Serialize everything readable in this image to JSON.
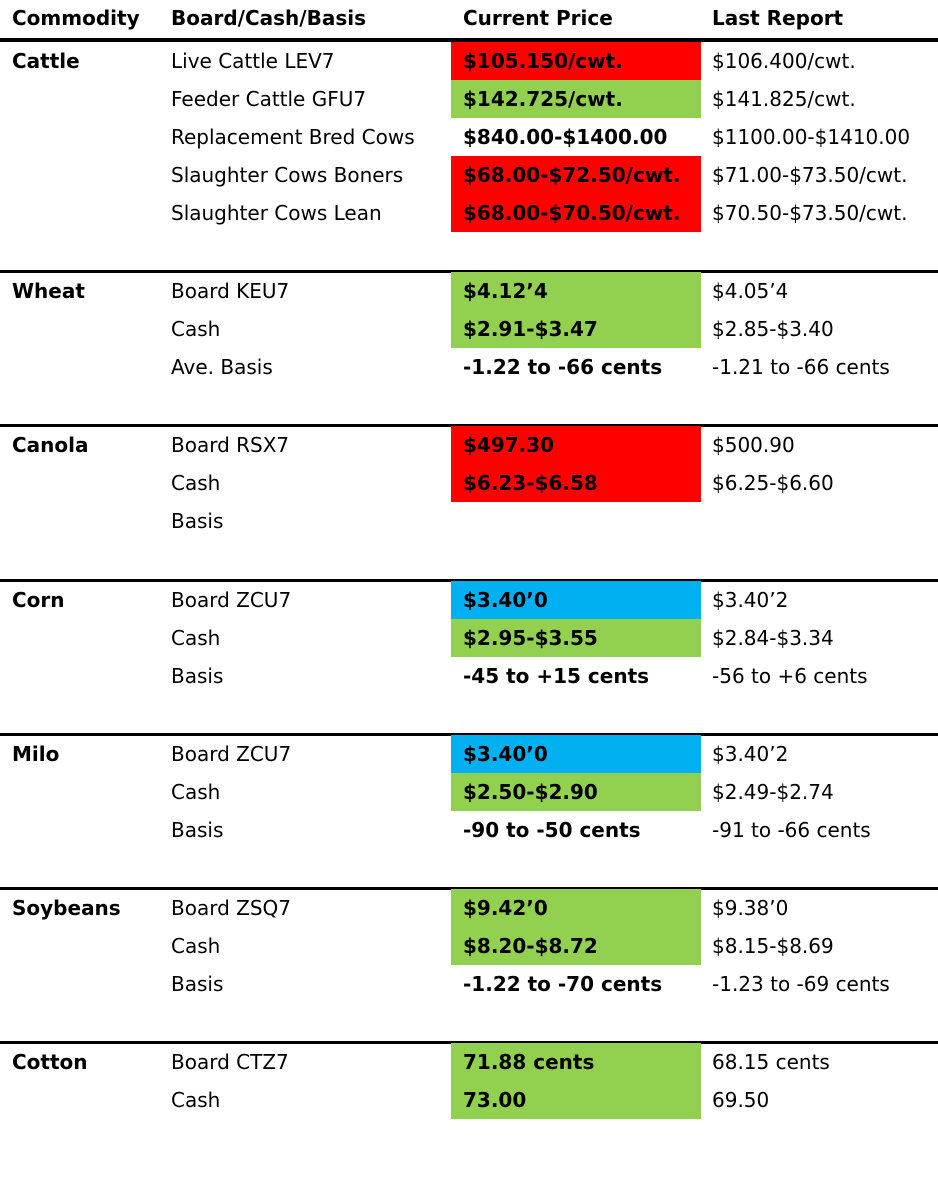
{
  "headers": {
    "commodity": "Commodity",
    "board": "Board/Cash/Basis",
    "current": "Current Price",
    "last": "Last Report"
  },
  "colors": {
    "up": "#92d050",
    "down": "#ff0000",
    "unchanged": "#00b0f0"
  },
  "sections": [
    {
      "commodity": "Cattle",
      "rows": [
        {
          "board": "Live Cattle LEV7",
          "current": "$105.150/cwt.",
          "last": "$106.400/cwt.",
          "trend": "down"
        },
        {
          "board": "Feeder Cattle GFU7",
          "current": "$142.725/cwt.",
          "last": "$141.825/cwt.",
          "trend": "up"
        },
        {
          "board": "Replacement Bred Cows",
          "current": "$840.00-$1400.00",
          "last": "$1100.00-$1410.00",
          "trend": "none"
        },
        {
          "board": "Slaughter Cows Boners",
          "current": "$68.00-$72.50/cwt.",
          "last": "$71.00-$73.50/cwt.",
          "trend": "down"
        },
        {
          "board": "Slaughter Cows Lean",
          "current": "$68.00-$70.50/cwt.",
          "last": "$70.50-$73.50/cwt.",
          "trend": "down"
        }
      ]
    },
    {
      "commodity": "Wheat",
      "rows": [
        {
          "board": "Board KEU7",
          "current": "$4.12’4",
          "last": "$4.05’4",
          "trend": "up"
        },
        {
          "board": "Cash",
          "current": "$2.91-$3.47",
          "last": "$2.85-$3.40",
          "trend": "up"
        },
        {
          "board": "Ave. Basis",
          "current": "-1.22 to -66 cents",
          "last": "-1.21 to -66 cents",
          "trend": "none"
        }
      ]
    },
    {
      "commodity": "Canola",
      "rows": [
        {
          "board": "Board RSX7",
          "current": "$497.30",
          "last": "$500.90",
          "trend": "down"
        },
        {
          "board": "Cash",
          "current": "$6.23-$6.58",
          "last": "$6.25-$6.60",
          "trend": "down"
        },
        {
          "board": "Basis",
          "current": "",
          "last": "",
          "trend": "none"
        }
      ]
    },
    {
      "commodity": "Corn",
      "rows": [
        {
          "board": "Board ZCU7",
          "current": "$3.40’0",
          "last": "$3.40’2",
          "trend": "unchanged"
        },
        {
          "board": "Cash",
          "current": "$2.95-$3.55",
          "last": "$2.84-$3.34",
          "trend": "up"
        },
        {
          "board": "Basis",
          "current": "-45 to +15 cents",
          "last": "-56 to +6 cents",
          "trend": "none"
        }
      ]
    },
    {
      "commodity": "Milo",
      "rows": [
        {
          "board": "Board ZCU7",
          "current": "$3.40’0",
          "last": "$3.40’2",
          "trend": "unchanged"
        },
        {
          "board": "Cash",
          "current": "$2.50-$2.90",
          "last": "$2.49-$2.74",
          "trend": "up"
        },
        {
          "board": "Basis",
          "current": "-90 to -50 cents",
          "last": "-91 to -66 cents",
          "trend": "none"
        }
      ]
    },
    {
      "commodity": "Soybeans",
      "rows": [
        {
          "board": "Board ZSQ7",
          "current": "$9.42’0",
          "last": "$9.38’0",
          "trend": "up"
        },
        {
          "board": "Cash",
          "current": "$8.20-$8.72",
          "last": "$8.15-$8.69",
          "trend": "up"
        },
        {
          "board": "Basis",
          "current": "-1.22 to -70 cents",
          "last": "-1.23 to -69 cents",
          "trend": "none"
        }
      ]
    },
    {
      "commodity": "Cotton",
      "rows": [
        {
          "board": "Board CTZ7",
          "current": "71.88 cents",
          "last": "68.15 cents",
          "trend": "up"
        },
        {
          "board": "Cash",
          "current": "73.00",
          "last": "69.50",
          "trend": "up"
        }
      ]
    }
  ]
}
